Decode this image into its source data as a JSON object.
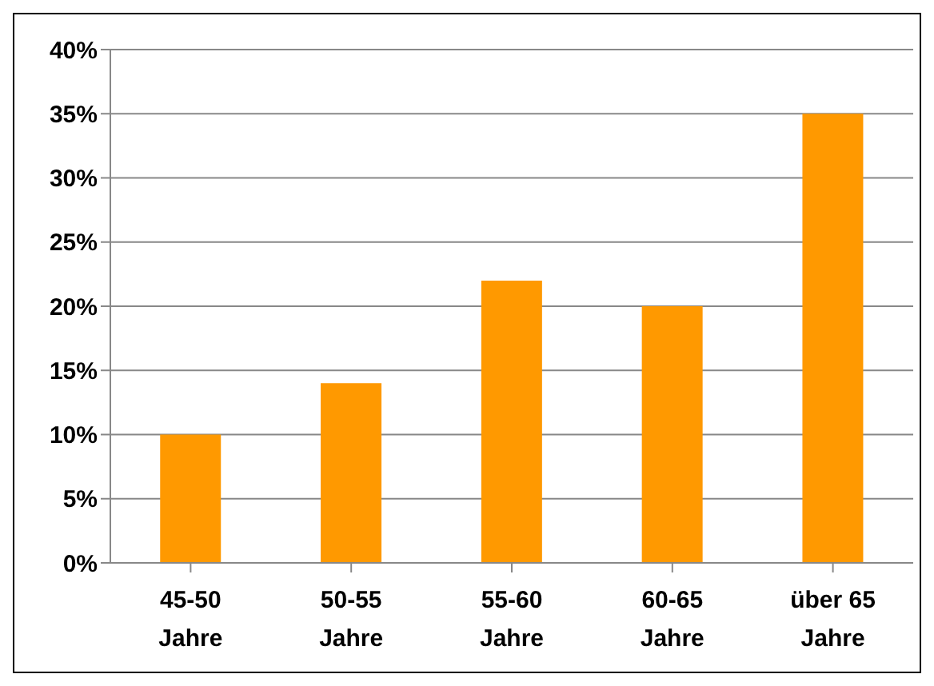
{
  "chart_data": {
    "type": "bar",
    "categories": [
      "45-50 Jahre",
      "50-55 Jahre",
      "55-60 Jahre",
      "60-65 Jahre",
      "über 65 Jahre"
    ],
    "values": [
      10,
      14,
      22,
      20,
      35
    ],
    "color": "#ff9900",
    "ylim": [
      0,
      40
    ],
    "yticks": [
      {
        "value": 0,
        "label": "0%"
      },
      {
        "value": 5,
        "label": "5%"
      },
      {
        "value": 10,
        "label": "10%"
      },
      {
        "value": 15,
        "label": "15%"
      },
      {
        "value": 20,
        "label": "20%"
      },
      {
        "value": 25,
        "label": "25%"
      },
      {
        "value": 30,
        "label": "30%"
      },
      {
        "value": 35,
        "label": "35%"
      },
      {
        "value": 40,
        "label": "40%"
      }
    ],
    "grid": "y",
    "legend": false
  }
}
